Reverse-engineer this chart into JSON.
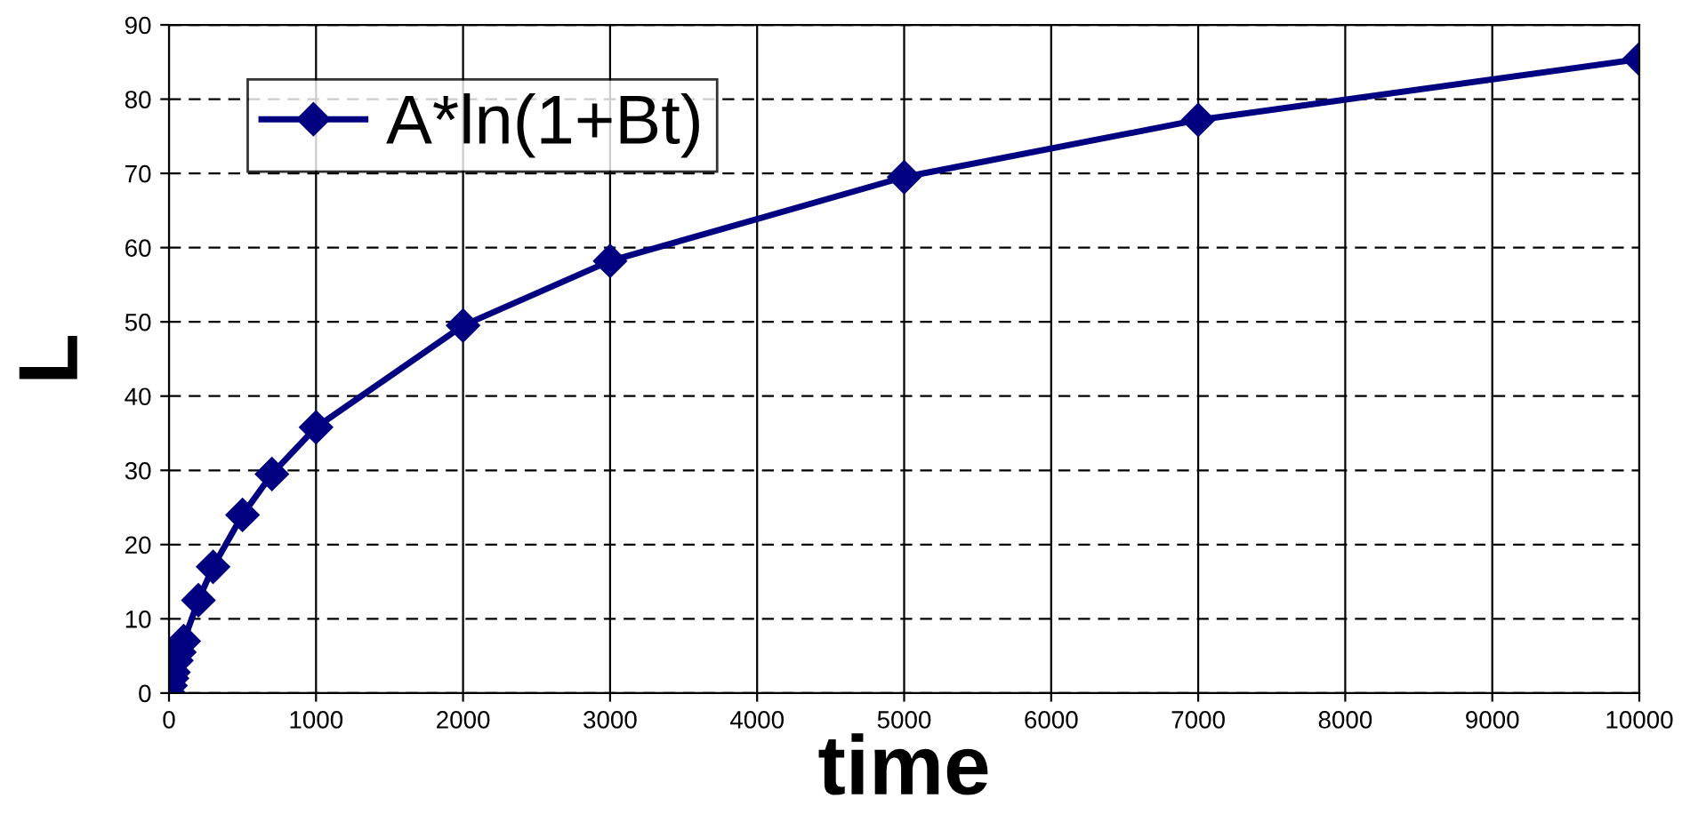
{
  "chart_data": {
    "type": "line",
    "xlabel": "time",
    "ylabel": "L",
    "x": [
      0,
      10,
      20,
      30,
      50,
      70,
      100,
      200,
      300,
      500,
      700,
      1000,
      2000,
      3000,
      5000,
      7000,
      10000
    ],
    "series": [
      {
        "name": "A*ln(1+Bt)",
        "color": "#000080",
        "values": [
          0,
          1,
          2,
          2.8,
          4.4,
          5.5,
          7,
          12.5,
          17,
          24,
          29.5,
          35.8,
          49.5,
          58.2,
          69.5,
          77.2,
          85.4
        ]
      }
    ],
    "xlim": [
      0,
      10000
    ],
    "xticks": [
      0,
      1000,
      2000,
      3000,
      4000,
      5000,
      6000,
      7000,
      8000,
      9000,
      10000
    ],
    "ylim": [
      0,
      90
    ],
    "yticks": [
      0,
      10,
      20,
      30,
      40,
      50,
      60,
      70,
      80,
      90
    ],
    "grid": true,
    "legend": "top left",
    "marker": "diamond",
    "line_style": "solid"
  }
}
